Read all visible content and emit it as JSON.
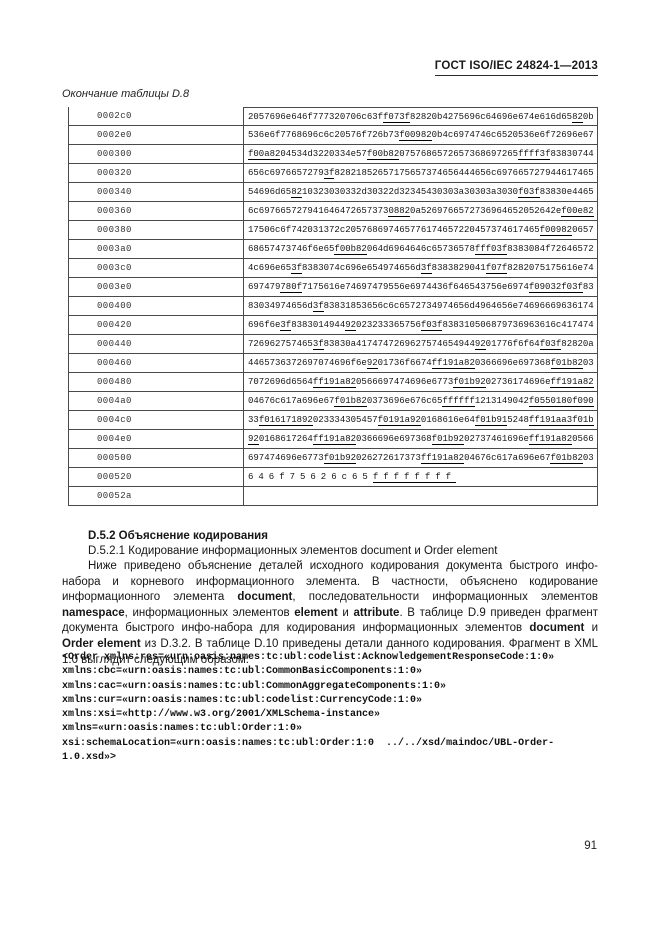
{
  "header": {
    "title": "ГОСТ ISO/IEC 24824-1—2013"
  },
  "table": {
    "caption": "Окончание таблицы D.8",
    "rows": [
      {
        "offset": "0002c0",
        "segments": [
          {
            "t": "2057696e646f777320706c63f"
          },
          {
            "t": "f073f",
            "u": true
          },
          {
            "t": "82820b4275696c64696e674e616d65"
          },
          {
            "t": "82",
            "u": true
          },
          {
            "t": "0b"
          }
        ]
      },
      {
        "offset": "0002e0",
        "segments": [
          {
            "t": "536e6f7768696c6c20576f726b73"
          },
          {
            "t": "f00982",
            "u": true
          },
          {
            "t": "0b4c6974746c6520536e6f72696e67"
          }
        ]
      },
      {
        "offset": "000300",
        "segments": [
          {
            "t": "f00a82",
            "u": true
          },
          {
            "t": "04534d3220334e57"
          },
          {
            "t": "f00b82",
            "u": true
          },
          {
            "t": "0757686572657368697265"
          },
          {
            "t": "ffff3f",
            "u": true
          },
          {
            "t": "83830744"
          }
        ]
      },
      {
        "offset": "000320",
        "segments": [
          {
            "t": "656c6976657279"
          },
          {
            "t": "3f",
            "u": true
          },
          {
            "t": "82821852657175657374656444656c697665727944617465"
          }
        ]
      },
      {
        "offset": "000340",
        "segments": [
          {
            "t": "54696d65"
          },
          {
            "t": "82",
            "u": true
          },
          {
            "t": "10323030332d30322d32345430303a30303a3030"
          },
          {
            "t": "f03f",
            "u": true
          },
          {
            "t": "83830e4465"
          }
        ]
      },
      {
        "offset": "000360",
        "segments": [
          {
            "t": "6c697665727941646472657373"
          },
          {
            "t": "0882",
            "u": true
          },
          {
            "t": "0a5269766572736964652052642e"
          },
          {
            "t": "f00e82",
            "u": true
          }
        ]
      },
      {
        "offset": "000380",
        "segments": [
          {
            "t": "17506c6f742031372c205768697465776174657220457374617465"
          },
          {
            "t": "f00982",
            "u": true
          },
          {
            "t": "0657"
          }
        ]
      },
      {
        "offset": "0003a0",
        "segments": [
          {
            "t": "68657473746f6e65"
          },
          {
            "t": "f00b82",
            "u": true
          },
          {
            "t": "064d6964646c65736578"
          },
          {
            "t": "fff03f",
            "u": true
          },
          {
            "t": "8383084f72646572"
          }
        ]
      },
      {
        "offset": "0003c0",
        "segments": [
          {
            "t": "4c696e65"
          },
          {
            "t": "3f",
            "u": true
          },
          {
            "t": "8383074c696e654974656d"
          },
          {
            "t": "3f",
            "u": true
          },
          {
            "t": "8383829041"
          },
          {
            "t": "f07f",
            "u": true
          },
          {
            "t": "8282075175616e74"
          }
        ]
      },
      {
        "offset": "0003e0",
        "segments": [
          {
            "t": "697479"
          },
          {
            "t": "780f",
            "u": true
          },
          {
            "t": "7175616e74697479556e6974436f646543756e6974"
          },
          {
            "t": "f09032",
            "u": true
          },
          {
            "t": "f03f",
            "u": true
          },
          {
            "t": "83"
          }
        ]
      },
      {
        "offset": "000400",
        "segments": [
          {
            "t": "83034974656d"
          },
          {
            "t": "3f",
            "u": true
          },
          {
            "t": "83831853656c6c6572734974656d4964656e74696669636174"
          }
        ]
      },
      {
        "offset": "000420",
        "segments": [
          {
            "t": "696f6e"
          },
          {
            "t": "3f",
            "u": true
          },
          {
            "t": "8383014944"
          },
          {
            "t": "92",
            "u": true
          },
          {
            "t": "023233365756"
          },
          {
            "t": "f03f",
            "u": true
          },
          {
            "t": "838310506879736963616c417474"
          }
        ]
      },
      {
        "offset": "000440",
        "segments": [
          {
            "t": "726962757465"
          },
          {
            "t": "3f",
            "u": true
          },
          {
            "t": "83830a4174747269627574654944"
          },
          {
            "t": "92",
            "u": true
          },
          {
            "t": "01776f6f64"
          },
          {
            "t": "f03f",
            "u": true
          },
          {
            "t": "82820a"
          }
        ]
      },
      {
        "offset": "000460",
        "segments": [
          {
            "t": "4465736372697074696f6e"
          },
          {
            "t": "92",
            "u": true
          },
          {
            "t": "01736f6674"
          },
          {
            "t": "ff191a82",
            "u": true
          },
          {
            "t": "0366696e697368"
          },
          {
            "t": "f01b82",
            "u": true
          },
          {
            "t": "03"
          }
        ]
      },
      {
        "offset": "000480",
        "segments": [
          {
            "t": "7072696d6564"
          },
          {
            "t": "ff191a82",
            "u": true
          },
          {
            "t": "0566697474696e6773"
          },
          {
            "t": "f01b92",
            "u": true
          },
          {
            "t": "02736174696e"
          },
          {
            "t": "ff191a82",
            "u": true
          }
        ]
      },
      {
        "offset": "0004a0",
        "segments": [
          {
            "t": "04676c617a696e67"
          },
          {
            "t": "f01b82",
            "u": true
          },
          {
            "t": "0373696e676c65"
          },
          {
            "t": "ffffff",
            "u": true
          },
          {
            "t": "12131490"
          },
          {
            "t": "42"
          },
          {
            "t": "f0550180f090",
            "u": true
          }
        ]
      },
      {
        "offset": "0004c0",
        "segments": [
          {
            "t": "33"
          },
          {
            "t": "f016171892",
            "u": true
          },
          {
            "t": "023334305457"
          },
          {
            "t": "f0191a92",
            "u": true
          },
          {
            "t": "0168616e64"
          },
          {
            "t": "f01b91",
            "u": true
          },
          {
            "t": "5248"
          },
          {
            "t": "ff191aa3f01b",
            "u": true
          }
        ]
      },
      {
        "offset": "0004e0",
        "segments": [
          {
            "t": "92",
            "u": true
          },
          {
            "t": "0168617264"
          },
          {
            "t": "ff191a82",
            "u": true
          },
          {
            "t": "0366696e697368"
          },
          {
            "t": "f01b92",
            "u": true
          },
          {
            "t": "02737461696e"
          },
          {
            "t": "ff191a82",
            "u": true
          },
          {
            "t": "0566"
          }
        ]
      },
      {
        "offset": "000500",
        "segments": [
          {
            "t": "697474696e6773"
          },
          {
            "t": "f01b92",
            "u": true
          },
          {
            "t": "026272617373"
          },
          {
            "t": "ff191a82",
            "u": true
          },
          {
            "t": "04676c617a696e67"
          },
          {
            "t": "f01b82",
            "u": true
          },
          {
            "t": "03"
          }
        ]
      },
      {
        "offset": "000520",
        "spaced": true,
        "segments": [
          {
            "t": "646f75626c65"
          },
          {
            "t": "ffffffff",
            "u": true
          }
        ]
      },
      {
        "offset": "00052a",
        "segments": []
      }
    ]
  },
  "section": {
    "heading": "D.5.2 Объяснение кодирования",
    "subheading": "D.5.2.1 Кодирование информационных элементов document и Order element",
    "paragraph": [
      {
        "t": "Ниже приведено объяснение деталей исходного кодирования документа быстрого инфо-набора и корневого информационного элемента. В частности, объяснено кодирование информационного элемента "
      },
      {
        "t": "document",
        "b": true
      },
      {
        "t": ", последовательности информационных элементов "
      },
      {
        "t": "namespace",
        "b": true
      },
      {
        "t": ", информационных элементов "
      },
      {
        "t": "element",
        "b": true
      },
      {
        "t": " и "
      },
      {
        "t": "attribute",
        "b": true
      },
      {
        "t": ". В таблице D.9 приведен фрагмент документа быстрого инфо-набора для кодирования информационных элементов "
      },
      {
        "t": "document",
        "b": true
      },
      {
        "t": " и "
      },
      {
        "t": "Order element",
        "b": true
      },
      {
        "t": " из D.3.2. В таблице D.10 приведены детали данного кодирования. Фрагмент в XML 1.0 выглядит следующим образом:"
      }
    ]
  },
  "code": {
    "lines": [
      "<Order xmlns:res=«urn:oasis:names:tc:ubl:codelist:AcknowledgementResponseCode:1:0»",
      "xmlns:cbc=«urn:oasis:names:tc:ubl:CommonBasicComponents:1:0»",
      "xmlns:cac=«urn:oasis:names:tc:ubl:CommonAggregateComponents:1:0»",
      "xmlns:cur=«urn:oasis:names:tc:ubl:codelist:CurrencyCode:1:0»",
      "xmlns:xsi=«http://www.w3.org/2001/XMLSchema-instance»",
      "xmlns=«urn:oasis:names:tc:ubl:Order:1:0»",
      "xsi:schemaLocation=«urn:oasis:names:tc:ubl:Order:1:0  ../../xsd/maindoc/UBL-Order-",
      "1.0.xsd»>"
    ]
  },
  "footer": {
    "page_number": "91"
  }
}
